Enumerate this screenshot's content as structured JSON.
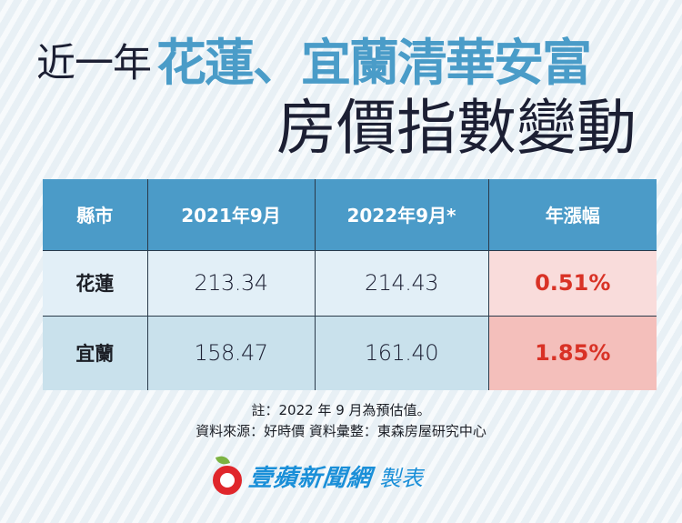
{
  "title": {
    "prefix": "近一年",
    "highlight": "花蓮、宜蘭清華安富",
    "subtitle": "房價指數變動"
  },
  "table": {
    "headers": [
      "縣市",
      "2021年9月",
      "2022年9月*",
      "年漲幅"
    ],
    "rows": [
      {
        "county": "花蓮",
        "sep_2021": "213.34",
        "sep_2022": "214.43",
        "yoy_change": "0.51%"
      },
      {
        "county": "宜蘭",
        "sep_2021": "158.47",
        "sep_2022": "161.40",
        "yoy_change": "1.85%"
      }
    ]
  },
  "notes": {
    "note": "註：2022 年 9 月為預估值。",
    "source": "資料來源：好時價 資料彙整：東森房屋研究中心"
  },
  "footer": {
    "logo_icon": "apple-icon",
    "brand": "壹蘋新聞網",
    "suffix": "製表"
  },
  "colors": {
    "header_bg": "#4b9bc8",
    "title_accent": "#4a9cc8",
    "row1_bg": "#e2eff7",
    "row2_bg": "#c9e1ec",
    "pct_text": "#d93226",
    "pct_row1_bg": "#f9dcdb",
    "pct_row2_bg": "#f4bfbb",
    "brand_blue": "#1a8fd8",
    "apple_red": "#e0262b",
    "leaf_green": "#7cb342"
  },
  "chart_data": {
    "type": "table",
    "title": "近一年花蓮、宜蘭清華安富房價指數變動",
    "columns": [
      "縣市",
      "2021年9月",
      "2022年9月*",
      "年漲幅"
    ],
    "rows": [
      [
        "花蓮",
        213.34,
        214.43,
        "0.51%"
      ],
      [
        "宜蘭",
        158.47,
        161.4,
        "1.85%"
      ]
    ],
    "annotations": [
      "註：2022 年 9 月為預估值。",
      "資料來源：好時價 資料彙整：東森房屋研究中心"
    ]
  }
}
